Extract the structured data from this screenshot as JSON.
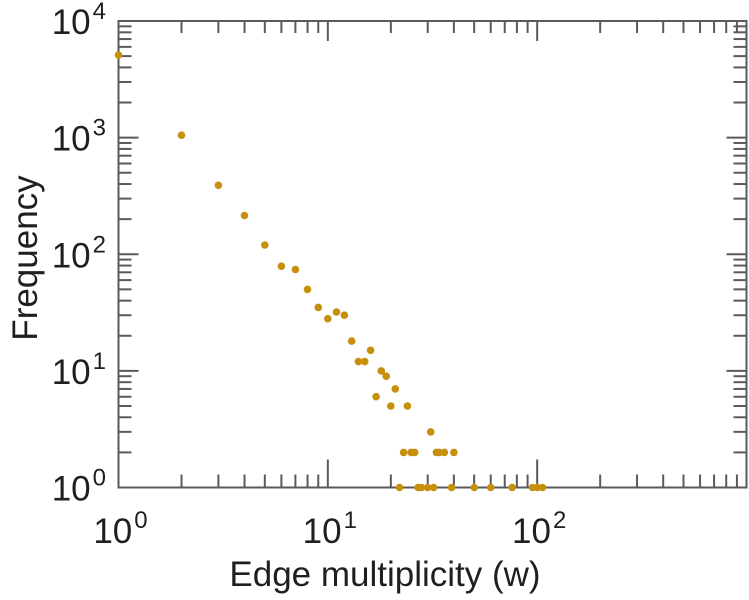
{
  "chart_data": {
    "type": "scatter",
    "title": "",
    "xlabel": "Edge multiplicity (w)",
    "ylabel": "Frequency",
    "xscale": "log",
    "yscale": "log",
    "xlim": [
      1,
      1000
    ],
    "ylim": [
      1,
      10000
    ],
    "grid": false,
    "legend": null,
    "tick_label_base": "10",
    "x_tick_exponents": [
      0,
      1,
      2
    ],
    "y_tick_exponents": [
      0,
      1,
      2,
      3,
      4
    ],
    "marker": "filled-circle",
    "marker_color": "#C6900C",
    "axis_color": "#5a5a5a",
    "text_color": "#1f1f1f",
    "points": [
      [
        1,
        5100
      ],
      [
        2,
        1050
      ],
      [
        3,
        390
      ],
      [
        4,
        215
      ],
      [
        5,
        120
      ],
      [
        6,
        79
      ],
      [
        7,
        74
      ],
      [
        8,
        50
      ],
      [
        9,
        35
      ],
      [
        10,
        28
      ],
      [
        11,
        32
      ],
      [
        12,
        30
      ],
      [
        13,
        18
      ],
      [
        14,
        12
      ],
      [
        15,
        12
      ],
      [
        16,
        15
      ],
      [
        17,
        6
      ],
      [
        18,
        10
      ],
      [
        19,
        9
      ],
      [
        20,
        5
      ],
      [
        21,
        7
      ],
      [
        24,
        5
      ],
      [
        31,
        3
      ],
      [
        23,
        2
      ],
      [
        25,
        2
      ],
      [
        26,
        2
      ],
      [
        33,
        2
      ],
      [
        34,
        2
      ],
      [
        36,
        2
      ],
      [
        40,
        2
      ],
      [
        22,
        1
      ],
      [
        27,
        1
      ],
      [
        28,
        1
      ],
      [
        30,
        1
      ],
      [
        32,
        1
      ],
      [
        39,
        1
      ],
      [
        50,
        1
      ],
      [
        60,
        1
      ],
      [
        76,
        1
      ],
      [
        95,
        1
      ],
      [
        100,
        1
      ],
      [
        106,
        1
      ]
    ]
  }
}
